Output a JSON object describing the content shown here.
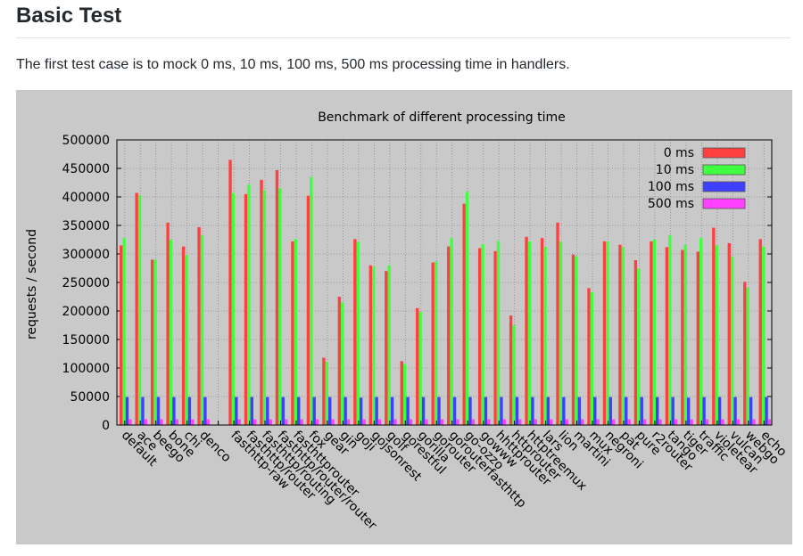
{
  "heading": "Basic Test",
  "intro": "The first test case is to mock 0 ms, 10 ms, 100 ms, 500 ms processing time in handlers.",
  "chart_data": {
    "type": "bar",
    "title": "Benchmark of different processing time",
    "xlabel": "",
    "ylabel": "requests / second",
    "ylim": [
      0,
      500000
    ],
    "yticks": [
      0,
      50000,
      100000,
      150000,
      200000,
      250000,
      300000,
      350000,
      400000,
      450000,
      500000
    ],
    "grid": true,
    "legend_position": "top-right",
    "categories": [
      "default",
      "ace",
      "beego",
      "bone",
      "chi",
      "denco",
      "",
      "fasthttp-raw",
      "fasthttp/router",
      "fasthttp/routing",
      "fasthttp/router/router",
      "fasthttprouter",
      "fox",
      "gear",
      "gin",
      "goji",
      "gojsonrest",
      "golf",
      "gorestful",
      "gorilla",
      "gorouter",
      "gorouterfasthttp",
      "go-ozzo",
      "gowww",
      "hhttprouter",
      "httprouter",
      "httptreemux",
      "lars",
      "lion",
      "martini",
      "mux",
      "negroni",
      "pat",
      "pure",
      "r2router",
      "tango",
      "tiger",
      "traffic",
      "violetear",
      "vulcan",
      "webgo",
      "echo"
    ],
    "series": [
      {
        "name": "0 ms",
        "color": "#ff4040",
        "values": [
          315000,
          407000,
          290000,
          355000,
          313000,
          347000,
          0,
          465000,
          405000,
          430000,
          447000,
          322000,
          402000,
          118000,
          225000,
          326000,
          280000,
          270000,
          112000,
          205000,
          285000,
          313000,
          388000,
          310000,
          305000,
          192000,
          330000,
          328000,
          355000,
          299000,
          240000,
          322000,
          316000,
          289000,
          322000,
          312000,
          307000,
          304000,
          346000,
          319000,
          251000,
          326000
        ]
      },
      {
        "name": "10 ms",
        "color": "#40ff40",
        "values": [
          328000,
          403000,
          290000,
          325000,
          298000,
          333000,
          0,
          407000,
          422000,
          412000,
          415000,
          326000,
          435000,
          111000,
          215000,
          321000,
          278000,
          280000,
          107000,
          198000,
          287000,
          328000,
          409000,
          317000,
          323000,
          175000,
          322000,
          312000,
          322000,
          296000,
          233000,
          322000,
          312000,
          274000,
          325000,
          333000,
          316000,
          328000,
          315000,
          295000,
          241000,
          313000
        ]
      },
      {
        "name": "100 ms",
        "color": "#3f3fff",
        "values": [
          49000,
          49000,
          49000,
          49000,
          49000,
          49000,
          0,
          49000,
          49000,
          49000,
          49000,
          49000,
          49000,
          49000,
          49000,
          48000,
          49000,
          49000,
          49000,
          49000,
          49000,
          49000,
          49000,
          49000,
          49000,
          49000,
          49000,
          49000,
          49000,
          49000,
          49000,
          49000,
          49000,
          49000,
          49000,
          49000,
          48000,
          49000,
          49000,
          49000,
          49000,
          49000
        ]
      },
      {
        "name": "500 ms",
        "color": "#ff40ff",
        "values": [
          10000,
          10000,
          10000,
          10000,
          10000,
          10000,
          0,
          10000,
          10000,
          10000,
          10000,
          10000,
          10000,
          10000,
          10000,
          10000,
          10000,
          10000,
          10000,
          10000,
          10000,
          10000,
          10000,
          10000,
          10000,
          10000,
          10000,
          10000,
          10000,
          10000,
          10000,
          10000,
          10000,
          10000,
          10000,
          10000,
          10000,
          10000,
          10000,
          10000,
          10000,
          10000
        ]
      }
    ]
  }
}
